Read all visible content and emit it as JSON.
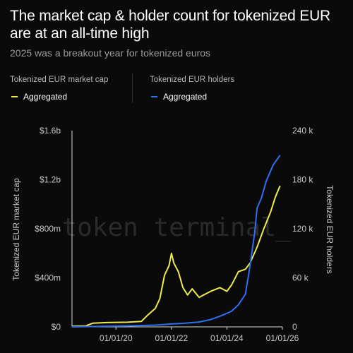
{
  "title": "The market cap & holder count for tokenized EUR are at an all-time high",
  "subtitle": "2025 was a breakout year for tokenized euros",
  "watermark": "token terminal_",
  "legend": [
    {
      "heading": "Tokenized EUR market cap",
      "label": "Aggregated",
      "color": "#f1ea4a"
    },
    {
      "heading": "Tokenized EUR holders",
      "label": "Aggregated",
      "color": "#2f6ff2"
    }
  ],
  "chart_data": {
    "type": "line",
    "x_axis": {
      "ticks": [
        "01/01/20",
        "01/01/22",
        "01/01/24",
        "01/01/26"
      ],
      "range": [
        "2018-06-01",
        "2026-01-01"
      ]
    },
    "left_axis": {
      "title": "Tokenized EUR market cap",
      "ticks": [
        "$0",
        "$400m",
        "$800m",
        "$1.2b",
        "$1.6b"
      ],
      "range": [
        0,
        1600000000
      ]
    },
    "right_axis": {
      "title": "Tokenized EUR holders",
      "ticks": [
        "0",
        "60 k",
        "120 k",
        "180 k",
        "240 k"
      ],
      "range": [
        0,
        240000
      ]
    },
    "grid": false,
    "series": [
      {
        "name": "Aggregated",
        "axis": "left",
        "color": "#f1ea4a",
        "points": [
          [
            "2018-06-01",
            5000000
          ],
          [
            "2018-12-01",
            8000000
          ],
          [
            "2019-03-01",
            30000000
          ],
          [
            "2019-09-01",
            35000000
          ],
          [
            "2020-06-01",
            38000000
          ],
          [
            "2020-12-01",
            45000000
          ],
          [
            "2021-03-01",
            100000000
          ],
          [
            "2021-06-01",
            150000000
          ],
          [
            "2021-08-01",
            230000000
          ],
          [
            "2021-10-01",
            420000000
          ],
          [
            "2021-12-01",
            500000000
          ],
          [
            "2022-01-01",
            600000000
          ],
          [
            "2022-02-01",
            520000000
          ],
          [
            "2022-04-01",
            450000000
          ],
          [
            "2022-06-01",
            320000000
          ],
          [
            "2022-08-01",
            260000000
          ],
          [
            "2022-10-01",
            310000000
          ],
          [
            "2023-01-01",
            240000000
          ],
          [
            "2023-03-01",
            260000000
          ],
          [
            "2023-06-01",
            290000000
          ],
          [
            "2023-10-01",
            320000000
          ],
          [
            "2024-01-01",
            290000000
          ],
          [
            "2024-03-01",
            340000000
          ],
          [
            "2024-06-01",
            450000000
          ],
          [
            "2024-09-01",
            470000000
          ],
          [
            "2024-11-01",
            520000000
          ],
          [
            "2025-02-01",
            650000000
          ],
          [
            "2025-05-01",
            800000000
          ],
          [
            "2025-08-01",
            940000000
          ],
          [
            "2025-10-01",
            1060000000
          ],
          [
            "2025-12-01",
            1150000000
          ]
        ]
      },
      {
        "name": "Aggregated",
        "axis": "right",
        "color": "#2f6ff2",
        "points": [
          [
            "2018-06-01",
            0
          ],
          [
            "2019-06-01",
            600
          ],
          [
            "2020-06-01",
            1200
          ],
          [
            "2021-06-01",
            2200
          ],
          [
            "2022-01-01",
            3500
          ],
          [
            "2022-06-01",
            4300
          ],
          [
            "2023-01-01",
            6000
          ],
          [
            "2023-06-01",
            9000
          ],
          [
            "2023-10-01",
            13000
          ],
          [
            "2024-03-01",
            19000
          ],
          [
            "2024-06-01",
            27000
          ],
          [
            "2024-09-01",
            40000
          ],
          [
            "2024-11-01",
            75000
          ],
          [
            "2025-01-01",
            115000
          ],
          [
            "2025-02-01",
            145000
          ],
          [
            "2025-04-01",
            158000
          ],
          [
            "2025-06-01",
            178000
          ],
          [
            "2025-09-01",
            198000
          ],
          [
            "2025-12-01",
            210000
          ]
        ]
      }
    ]
  }
}
